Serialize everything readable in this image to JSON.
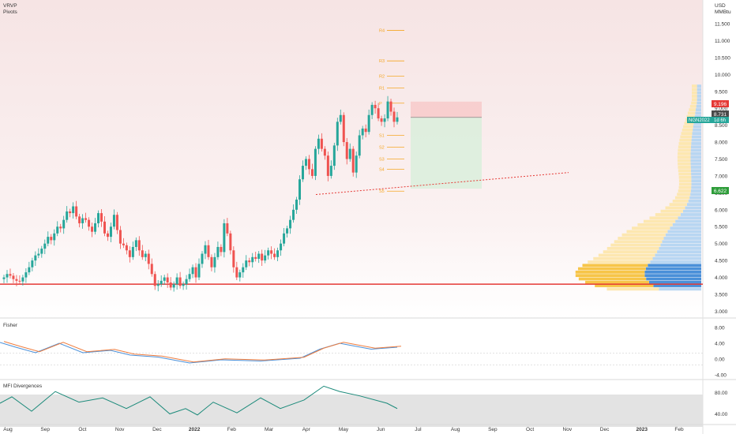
{
  "top_left": {
    "line1": "VRVP",
    "line2": "Pivots"
  },
  "top_right": {
    "line1": "USD",
    "line2": "MMBtu"
  },
  "fisher_label": "Fisher",
  "mfi_label": "MFI Divergences",
  "price_badges": {
    "upper": "9.196",
    "last": "8.731",
    "symbol": "NGN2022",
    "countdown": "1d 6h",
    "lower": "6.622"
  },
  "colors": {
    "up": "#26a69a",
    "down": "#ef5350",
    "support": "#e53935",
    "pivot": "#f5a623",
    "vol_blue": "#4a90d9",
    "vol_blue_light": "#b8d6f2",
    "vol_yellow": "#f7c548",
    "vol_yellow_light": "#fde7b0"
  },
  "chart_data": {
    "type": "candlestick",
    "price_axis": {
      "min": 2.8,
      "max": 12.2,
      "ticks": [
        "3.000",
        "3.500",
        "4.000",
        "4.500",
        "5.000",
        "5.500",
        "6.000",
        "6.500",
        "7.000",
        "7.500",
        "8.000",
        "8.500",
        "9.000",
        "9.500",
        "10.000",
        "10.500",
        "11.000",
        "11.500"
      ]
    },
    "x_labels": [
      "Aug",
      "Sep",
      "Oct",
      "Nov",
      "Dec",
      "2022",
      "Feb",
      "Mar",
      "Apr",
      "May",
      "Jun",
      "Jul",
      "Aug",
      "Sep",
      "Oct",
      "Nov",
      "Dec",
      "2023",
      "Feb"
    ],
    "closes": [
      4.0,
      4.1,
      4.05,
      3.95,
      3.9,
      3.88,
      4.0,
      4.15,
      4.3,
      4.5,
      4.65,
      4.7,
      4.85,
      5.0,
      5.2,
      5.1,
      5.3,
      5.5,
      5.45,
      5.7,
      5.95,
      5.9,
      6.1,
      5.8,
      5.6,
      5.75,
      5.7,
      5.5,
      5.35,
      5.6,
      5.9,
      5.65,
      5.3,
      5.2,
      5.5,
      5.85,
      5.4,
      5.0,
      4.95,
      4.8,
      4.6,
      4.9,
      5.1,
      4.8,
      4.6,
      4.7,
      4.4,
      4.1,
      3.75,
      3.8,
      3.9,
      4.0,
      3.85,
      3.7,
      3.8,
      4.0,
      3.75,
      3.8,
      3.95,
      4.1,
      4.3,
      4.0,
      4.4,
      4.7,
      4.95,
      4.6,
      4.3,
      4.6,
      4.9,
      4.75,
      5.6,
      5.3,
      4.8,
      4.3,
      4.0,
      4.15,
      4.3,
      4.5,
      4.45,
      4.6,
      4.55,
      4.7,
      4.5,
      4.65,
      4.8,
      4.7,
      4.6,
      4.8,
      5.0,
      5.3,
      5.45,
      5.7,
      6.0,
      6.3,
      6.9,
      7.3,
      7.5,
      7.2,
      7.0,
      7.8,
      8.1,
      7.8,
      7.6,
      7.0,
      7.3,
      7.9,
      8.6,
      8.8,
      8.0,
      7.5,
      7.8,
      7.1,
      7.6,
      8.2,
      8.4,
      8.3,
      8.8,
      9.1,
      9.0,
      8.7,
      8.6,
      8.7,
      9.2,
      8.9,
      8.6,
      8.731
    ],
    "pivot_levels": [
      {
        "label": "R4",
        "price": 11.3
      },
      {
        "label": "R3",
        "price": 10.4
      },
      {
        "label": "R2",
        "price": 9.95
      },
      {
        "label": "R1",
        "price": 9.6
      },
      {
        "label": "P",
        "price": 9.15
      },
      {
        "label": "S1",
        "price": 8.2
      },
      {
        "label": "S2",
        "price": 7.85
      },
      {
        "label": "S3",
        "price": 7.5
      },
      {
        "label": "S4",
        "price": 7.2
      },
      {
        "label": "S5",
        "price": 6.55
      }
    ],
    "support_price": 3.8,
    "risk_reward": {
      "entry": 8.731,
      "stop": 9.196,
      "target": 6.622
    },
    "fisher": {
      "ticks": [
        "8.00",
        "4.00",
        "0.00",
        "-4.00"
      ],
      "min": -5,
      "max": 9
    },
    "mfi": {
      "ticks": [
        "80.00",
        "40.00"
      ],
      "min": 20,
      "max": 100
    }
  }
}
